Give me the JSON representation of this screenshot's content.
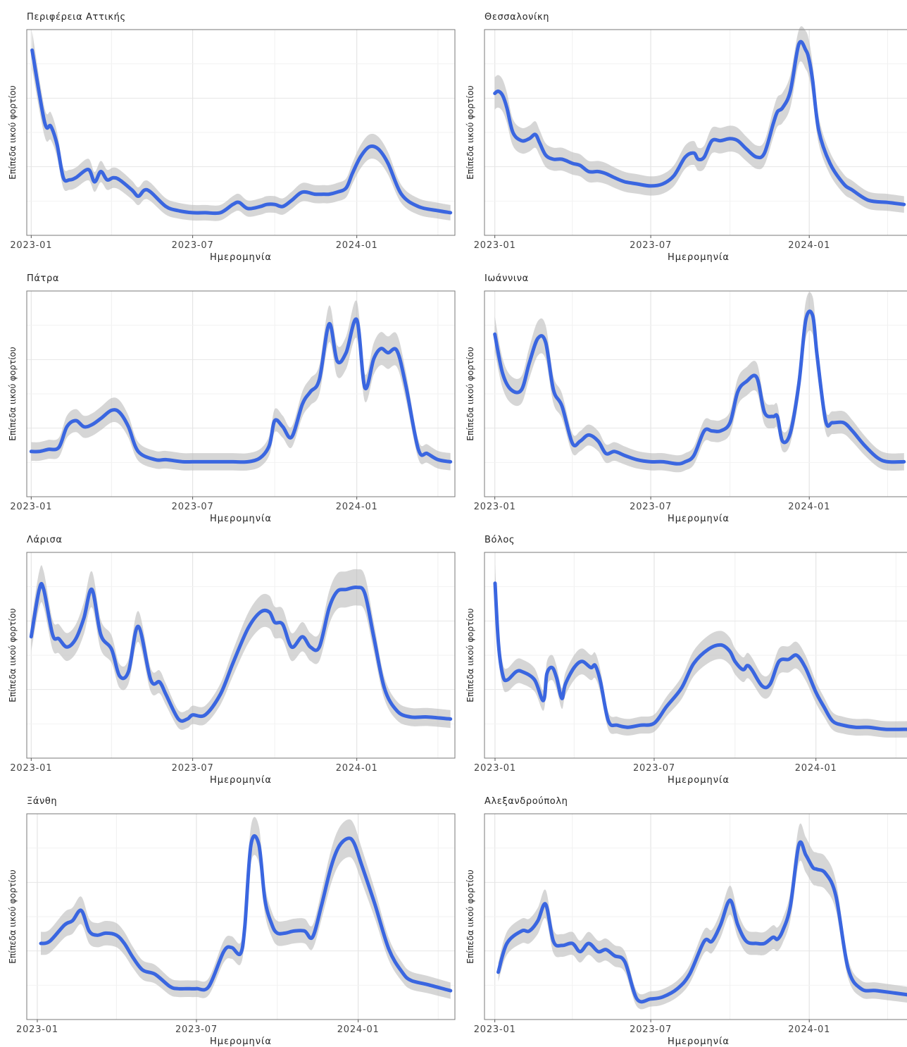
{
  "chart_data": [
    {
      "type": "line",
      "title": "Περιφέρεια Αττικής",
      "xlabel": "Ημερομηνία",
      "ylabel": "Επίπεδα ιικού φορτίου",
      "x_ticks": [
        "2023-01",
        "2023-07",
        "2024-01"
      ],
      "xlim": [
        "2022-12-27",
        "2024-04-20"
      ],
      "ylim": [
        0,
        100
      ],
      "grid": true,
      "confidence_band": true,
      "series": [
        {
          "x": [
            "2023-01-02",
            "2023-01-16",
            "2023-01-23",
            "2023-01-30",
            "2023-02-06",
            "2023-02-13",
            "2023-02-20",
            "2023-03-06",
            "2023-03-13",
            "2023-03-20",
            "2023-03-27",
            "2023-04-03",
            "2023-04-10",
            "2023-04-24",
            "2023-05-01",
            "2023-05-08",
            "2023-05-15",
            "2023-06-01",
            "2023-06-15",
            "2023-07-01",
            "2023-07-15",
            "2023-08-01",
            "2023-08-15",
            "2023-08-22",
            "2023-09-01",
            "2023-09-15",
            "2023-09-22",
            "2023-10-01",
            "2023-10-10",
            "2023-10-20",
            "2023-11-01",
            "2023-11-15",
            "2023-11-25",
            "2023-12-01",
            "2023-12-10",
            "2023-12-20",
            "2023-12-27",
            "2024-01-05",
            "2024-01-15",
            "2024-01-25",
            "2024-02-05",
            "2024-02-20",
            "2024-03-10",
            "2024-04-01",
            "2024-04-15"
          ],
          "y": [
            90,
            55,
            53,
            44,
            28,
            27,
            28,
            32,
            26,
            31,
            27,
            28,
            27,
            22,
            19,
            22,
            21,
            14,
            12,
            11,
            11,
            11,
            15,
            16,
            13,
            14,
            15,
            15,
            14,
            17,
            21,
            20,
            20,
            20,
            21,
            23,
            30,
            38,
            43,
            42,
            35,
            20,
            14,
            12,
            11
          ]
        }
      ]
    },
    {
      "type": "line",
      "title": "Θεσσαλονίκη",
      "xlabel": "Ημερομηνία",
      "ylabel": "Επίπεδα ιικού φορτίου",
      "x_ticks": [
        "2023-01",
        "2023-07",
        "2024-01"
      ],
      "xlim": [
        "2022-12-20",
        "2024-04-30"
      ],
      "ylim": [
        0,
        100
      ],
      "grid": true,
      "confidence_band": true,
      "series": [
        {
          "x": [
            "2023-01-01",
            "2023-01-05",
            "2023-01-10",
            "2023-01-15",
            "2023-01-22",
            "2023-02-01",
            "2023-02-10",
            "2023-02-17",
            "2023-02-22",
            "2023-03-01",
            "2023-03-10",
            "2023-03-20",
            "2023-04-01",
            "2023-04-10",
            "2023-04-20",
            "2023-05-01",
            "2023-05-10",
            "2023-05-20",
            "2023-06-01",
            "2023-06-15",
            "2023-07-01",
            "2023-07-15",
            "2023-07-28",
            "2023-08-10",
            "2023-08-20",
            "2023-08-25",
            "2023-09-01",
            "2023-09-10",
            "2023-09-20",
            "2023-10-01",
            "2023-10-10",
            "2023-10-20",
            "2023-11-01",
            "2023-11-10",
            "2023-11-20",
            "2023-11-25",
            "2023-12-01",
            "2023-12-10",
            "2023-12-20",
            "2023-12-28",
            "2024-01-01",
            "2024-01-05",
            "2024-01-12",
            "2024-01-25",
            "2024-02-10",
            "2024-02-20",
            "2024-03-10",
            "2024-04-01",
            "2024-04-20"
          ],
          "y": [
            69,
            70,
            68,
            62,
            50,
            46,
            47,
            49,
            45,
            39,
            37,
            37,
            35,
            34,
            31,
            31,
            30,
            28,
            26,
            25,
            24,
            25,
            29,
            38,
            40,
            37,
            38,
            46,
            46,
            47,
            46,
            42,
            38,
            40,
            54,
            60,
            62,
            70,
            93,
            90,
            85,
            75,
            51,
            35,
            25,
            22,
            17,
            16,
            15
          ]
        }
      ]
    },
    {
      "type": "line",
      "title": "Πάτρα",
      "xlabel": "Ημερομηνία",
      "ylabel": "Επίπεδα ιικού φορτίου",
      "x_ticks": [
        "2023-01",
        "2023-07",
        "2024-01"
      ],
      "xlim": [
        "2022-12-27",
        "2024-04-20"
      ],
      "ylim": [
        0,
        100
      ],
      "grid": true,
      "confidence_band": true,
      "series": [
        {
          "x": [
            "2023-01-01",
            "2023-01-10",
            "2023-01-20",
            "2023-02-01",
            "2023-02-10",
            "2023-02-20",
            "2023-03-01",
            "2023-03-10",
            "2023-03-20",
            "2023-04-01",
            "2023-04-10",
            "2023-04-20",
            "2023-05-01",
            "2023-05-20",
            "2023-06-01",
            "2023-06-20",
            "2023-07-01",
            "2023-07-15",
            "2023-08-01",
            "2023-08-15",
            "2023-09-01",
            "2023-09-15",
            "2023-09-25",
            "2023-10-01",
            "2023-10-10",
            "2023-10-20",
            "2023-11-01",
            "2023-11-10",
            "2023-11-20",
            "2023-12-01",
            "2023-12-10",
            "2023-12-20",
            "2024-01-01",
            "2024-01-10",
            "2024-01-20",
            "2024-01-28",
            "2024-02-05",
            "2024-02-15",
            "2024-02-25",
            "2024-03-10",
            "2024-03-20",
            "2024-04-01",
            "2024-04-15"
          ],
          "y": [
            22,
            22,
            23,
            24,
            34,
            37,
            34,
            35,
            38,
            42,
            41,
            34,
            22,
            18,
            18,
            17,
            17,
            17,
            17,
            17,
            17,
            19,
            25,
            37,
            34,
            29,
            45,
            51,
            57,
            84,
            66,
            70,
            86,
            53,
            67,
            72,
            70,
            71,
            54,
            23,
            21,
            18,
            17
          ]
        }
      ]
    },
    {
      "type": "line",
      "title": "Ιωάννινα",
      "xlabel": "Ημερομηνία",
      "ylabel": "Επίπεδα ιικού φορτίου",
      "x_ticks": [
        "2023-01",
        "2023-07",
        "2024-01"
      ],
      "xlim": [
        "2022-12-20",
        "2024-04-30"
      ],
      "ylim": [
        0,
        100
      ],
      "grid": true,
      "confidence_band": true,
      "series": [
        {
          "x": [
            "2023-01-01",
            "2023-01-10",
            "2023-01-20",
            "2023-02-01",
            "2023-02-10",
            "2023-02-20",
            "2023-03-01",
            "2023-03-10",
            "2023-03-20",
            "2023-04-01",
            "2023-04-10",
            "2023-04-20",
            "2023-05-01",
            "2023-05-10",
            "2023-05-20",
            "2023-06-01",
            "2023-06-15",
            "2023-07-01",
            "2023-07-15",
            "2023-08-01",
            "2023-08-10",
            "2023-08-20",
            "2023-09-01",
            "2023-09-10",
            "2023-09-20",
            "2023-10-01",
            "2023-10-10",
            "2023-10-20",
            "2023-11-01",
            "2023-11-10",
            "2023-11-20",
            "2023-11-25",
            "2023-12-01",
            "2023-12-10",
            "2023-12-20",
            "2023-12-28",
            "2024-01-05",
            "2024-01-10",
            "2024-01-20",
            "2024-01-28",
            "2024-02-10",
            "2024-02-20",
            "2024-03-05",
            "2024-03-20",
            "2024-04-01",
            "2024-04-20"
          ],
          "y": [
            79,
            60,
            52,
            52,
            65,
            77,
            75,
            52,
            44,
            26,
            27,
            30,
            27,
            21,
            22,
            20,
            18,
            17,
            17,
            16,
            17,
            20,
            32,
            32,
            32,
            36,
            51,
            56,
            58,
            41,
            39,
            39,
            27,
            31,
            55,
            86,
            88,
            69,
            37,
            36,
            36,
            32,
            25,
            19,
            17,
            17
          ]
        }
      ]
    },
    {
      "type": "line",
      "title": "Λάρισα",
      "xlabel": "Ημερομηνία",
      "ylabel": "Επίπεδα ιικού φορτίου",
      "x_ticks": [
        "2023-01",
        "2023-07",
        "2024-01"
      ],
      "xlim": [
        "2022-12-27",
        "2024-04-20"
      ],
      "ylim": [
        0,
        100
      ],
      "grid": true,
      "confidence_band": true,
      "series": [
        {
          "x": [
            "2023-01-01",
            "2023-01-10",
            "2023-01-15",
            "2023-01-25",
            "2023-02-01",
            "2023-02-10",
            "2023-02-20",
            "2023-03-01",
            "2023-03-10",
            "2023-03-20",
            "2023-04-01",
            "2023-04-10",
            "2023-04-20",
            "2023-05-01",
            "2023-05-15",
            "2023-05-25",
            "2023-06-01",
            "2023-06-15",
            "2023-06-25",
            "2023-07-01",
            "2023-07-15",
            "2023-08-01",
            "2023-08-15",
            "2023-09-01",
            "2023-09-15",
            "2023-09-25",
            "2023-10-01",
            "2023-10-10",
            "2023-10-20",
            "2023-11-01",
            "2023-11-10",
            "2023-11-20",
            "2023-12-01",
            "2023-12-10",
            "2023-12-20",
            "2024-01-01",
            "2024-01-10",
            "2024-01-20",
            "2024-02-01",
            "2024-02-15",
            "2024-03-01",
            "2024-03-20",
            "2024-04-15"
          ],
          "y": [
            59,
            82,
            82,
            60,
            58,
            54,
            58,
            68,
            82,
            60,
            53,
            40,
            42,
            64,
            38,
            37,
            31,
            19,
            19,
            21,
            21,
            31,
            46,
            63,
            71,
            71,
            66,
            65,
            54,
            59,
            54,
            54,
            73,
            81,
            82,
            83,
            80,
            59,
            34,
            23,
            20,
            20,
            19
          ]
        }
      ]
    },
    {
      "type": "line",
      "title": "Βόλος",
      "xlabel": "Ημερομηνία",
      "ylabel": "Επίπεδα ιικού φορτίου",
      "x_ticks": [
        "2023-01",
        "2023-07",
        "2024-01"
      ],
      "xlim": [
        "2022-12-20",
        "2024-04-20"
      ],
      "ylim": [
        0,
        100
      ],
      "grid": true,
      "confidence_band": true,
      "series": [
        {
          "x": [
            "2023-01-01",
            "2023-01-05",
            "2023-01-10",
            "2023-01-15",
            "2023-01-25",
            "2023-02-01",
            "2023-02-15",
            "2023-02-25",
            "2023-03-01",
            "2023-03-07",
            "2023-03-12",
            "2023-03-18",
            "2023-03-22",
            "2023-04-01",
            "2023-04-10",
            "2023-04-20",
            "2023-04-25",
            "2023-05-01",
            "2023-05-10",
            "2023-05-20",
            "2023-06-01",
            "2023-06-15",
            "2023-07-01",
            "2023-07-15",
            "2023-08-01",
            "2023-08-15",
            "2023-09-01",
            "2023-09-15",
            "2023-09-25",
            "2023-10-01",
            "2023-10-10",
            "2023-10-15",
            "2023-10-20",
            "2023-11-01",
            "2023-11-10",
            "2023-11-20",
            "2023-12-01",
            "2023-12-10",
            "2023-12-20",
            "2024-01-01",
            "2024-01-10",
            "2024-01-20",
            "2024-02-01",
            "2024-02-15",
            "2024-03-01",
            "2024-03-20",
            "2024-04-15"
          ],
          "y": [
            85,
            55,
            40,
            38,
            42,
            42,
            38,
            28,
            41,
            44,
            39,
            29,
            36,
            44,
            47,
            44,
            45,
            37,
            18,
            16,
            15,
            16,
            17,
            25,
            34,
            46,
            53,
            55,
            52,
            47,
            43,
            45,
            43,
            35,
            36,
            47,
            48,
            50,
            44,
            32,
            25,
            18,
            16,
            15,
            15,
            14,
            14
          ]
        }
      ]
    },
    {
      "type": "line",
      "title": "Ξάνθη",
      "xlabel": "Ημερομηνία",
      "ylabel": "Επίπεδα ιικού φορτίου",
      "x_ticks": [
        "2023-01",
        "2023-07",
        "2024-01"
      ],
      "xlim": [
        "2022-12-20",
        "2024-04-20"
      ],
      "ylim": [
        0,
        100
      ],
      "grid": true,
      "confidence_band": true,
      "series": [
        {
          "x": [
            "2023-01-05",
            "2023-01-15",
            "2023-02-01",
            "2023-02-10",
            "2023-02-20",
            "2023-03-01",
            "2023-03-10",
            "2023-03-20",
            "2023-04-01",
            "2023-04-10",
            "2023-04-20",
            "2023-05-01",
            "2023-05-15",
            "2023-06-01",
            "2023-06-10",
            "2023-06-20",
            "2023-07-01",
            "2023-07-15",
            "2023-08-01",
            "2023-08-10",
            "2023-08-20",
            "2023-08-25",
            "2023-09-01",
            "2023-09-10",
            "2023-09-17",
            "2023-09-25",
            "2023-10-01",
            "2023-10-10",
            "2023-10-20",
            "2023-11-01",
            "2023-11-10",
            "2023-11-20",
            "2023-12-01",
            "2023-12-10",
            "2023-12-20",
            "2023-12-27",
            "2024-01-05",
            "2024-01-20",
            "2024-02-05",
            "2024-02-20",
            "2024-03-01",
            "2024-03-20",
            "2024-04-15"
          ],
          "y": [
            37,
            38,
            46,
            48,
            53,
            43,
            41,
            42,
            41,
            37,
            30,
            24,
            22,
            16,
            15,
            15,
            15,
            16,
            33,
            35,
            32,
            45,
            85,
            85,
            58,
            46,
            42,
            42,
            43,
            43,
            40,
            55,
            74,
            84,
            88,
            86,
            75,
            56,
            34,
            23,
            19,
            17,
            14
          ]
        }
      ]
    },
    {
      "type": "line",
      "title": "Αλεξανδρούπολη",
      "xlabel": "Ημερομηνία",
      "ylabel": "Επίπεδα ιικού φορτίου",
      "x_ticks": [
        "2023-01",
        "2023-07",
        "2024-01"
      ],
      "xlim": [
        "2022-12-20",
        "2024-04-30"
      ],
      "ylim": [
        0,
        100
      ],
      "grid": true,
      "confidence_band": true,
      "series": [
        {
          "x": [
            "2023-01-05",
            "2023-01-15",
            "2023-02-01",
            "2023-02-10",
            "2023-02-20",
            "2023-03-01",
            "2023-03-10",
            "2023-03-20",
            "2023-04-01",
            "2023-04-10",
            "2023-04-20",
            "2023-05-01",
            "2023-05-10",
            "2023-05-20",
            "2023-06-01",
            "2023-06-15",
            "2023-07-01",
            "2023-07-15",
            "2023-08-01",
            "2023-08-15",
            "2023-09-01",
            "2023-09-10",
            "2023-09-20",
            "2023-10-01",
            "2023-10-10",
            "2023-10-20",
            "2023-11-01",
            "2023-11-10",
            "2023-11-20",
            "2023-11-25",
            "2023-12-01",
            "2023-12-10",
            "2023-12-20",
            "2023-12-28",
            "2024-01-05",
            "2024-01-10",
            "2024-01-20",
            "2024-02-01",
            "2024-02-15",
            "2024-03-01",
            "2024-03-20",
            "2024-04-25"
          ],
          "y": [
            23,
            37,
            43,
            43,
            48,
            56,
            38,
            36,
            37,
            33,
            37,
            33,
            34,
            31,
            28,
            10,
            10,
            11,
            15,
            22,
            38,
            38,
            46,
            58,
            46,
            38,
            37,
            37,
            40,
            39,
            43,
            55,
            85,
            80,
            74,
            73,
            71,
            60,
            25,
            15,
            14,
            12
          ]
        }
      ]
    }
  ]
}
